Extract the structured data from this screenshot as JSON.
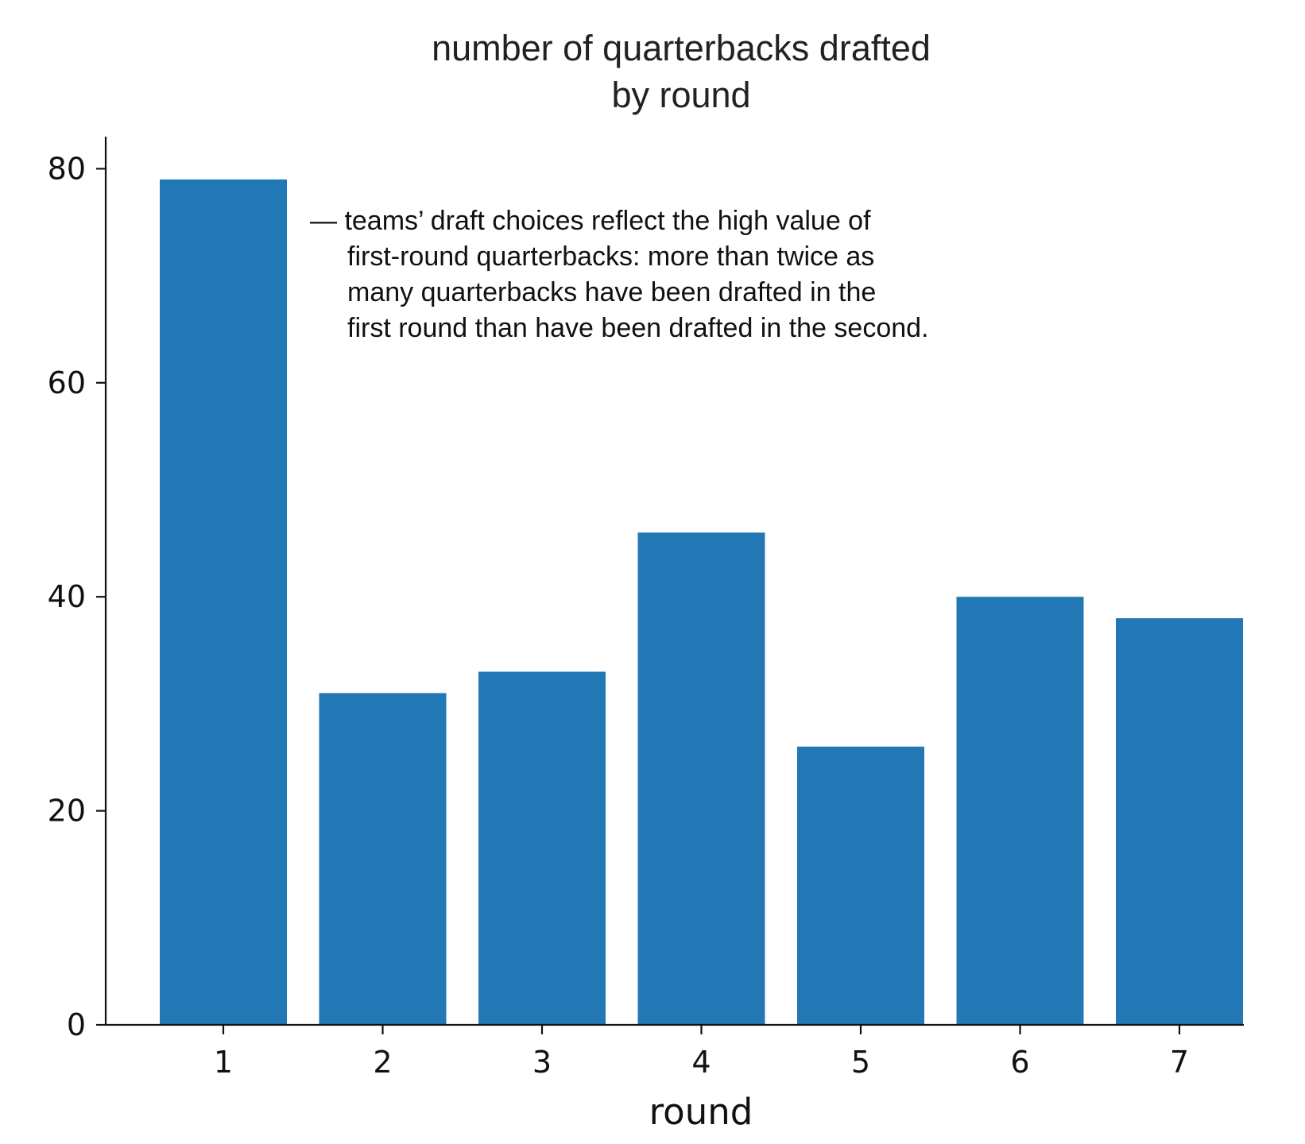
{
  "chart_data": {
    "type": "bar",
    "title": [
      "number of quarterbacks drafted",
      "by round"
    ],
    "xlabel": "round",
    "ylabel": "",
    "categories": [
      "1",
      "2",
      "3",
      "4",
      "5",
      "6",
      "7"
    ],
    "values": [
      79,
      31,
      33,
      46,
      26,
      40,
      38
    ],
    "ylim": [
      0,
      83
    ],
    "yticks": [
      0,
      20,
      40,
      60,
      80
    ],
    "grid": false,
    "bar_color": "#2178b4",
    "annotation": [
      "— teams’ draft choices reflect the high value of",
      "first-round quarterbacks: more than twice as",
      "many quarterbacks have been drafted in the",
      "first round than have been drafted in the second."
    ]
  }
}
